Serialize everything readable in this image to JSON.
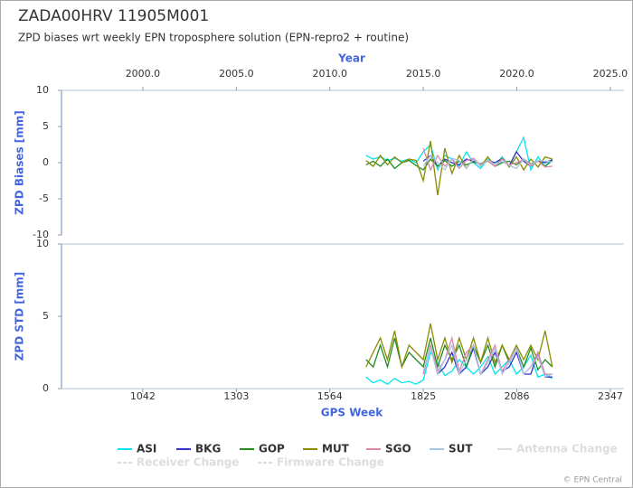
{
  "header": {
    "title": "ZADA00HRV 11905M001",
    "subtitle": "ZPD biases wrt weekly EPN troposphere solution (EPN-repro2 + routine)"
  },
  "chart_data": [
    {
      "type": "line",
      "ylabel": "ZPD Biases [mm]",
      "x2label": "Year",
      "x": [
        1665,
        1685,
        1705,
        1725,
        1745,
        1765,
        1785,
        1805,
        1825,
        1845,
        1865,
        1885,
        1905,
        1925,
        1945,
        1965,
        1985,
        2005,
        2025,
        2045,
        2065,
        2085,
        2105,
        2125,
        2145,
        2165,
        2185
      ],
      "xlim": [
        815,
        2385
      ],
      "x2lim": [
        1995.65,
        2025.73
      ],
      "x2ticks": [
        {
          "value": 2000,
          "label": "2000.0"
        },
        {
          "value": 2005,
          "label": "2005.0"
        },
        {
          "value": 2010,
          "label": "2010.0"
        },
        {
          "value": 2015,
          "label": "2015.0"
        },
        {
          "value": 2020,
          "label": "2020.0"
        },
        {
          "value": 2025,
          "label": "2025.0"
        }
      ],
      "ylim": [
        -10,
        10
      ],
      "yticks": [
        -10,
        -5,
        0,
        5,
        10
      ],
      "series": [
        {
          "name": "ASI",
          "color": "#00e5ee",
          "values": [
            1.0,
            0.5,
            0.8,
            0.3,
            0.6,
            0.2,
            0.5,
            0.0,
            1.5,
            2.5,
            -1.0,
            1.0,
            0.5,
            -0.5,
            1.5,
            0.0,
            -0.8,
            0.5,
            -0.5,
            0.8,
            -0.5,
            1.5,
            3.5,
            -1.0,
            0.8,
            -0.5,
            0.5
          ]
        },
        {
          "name": "BKG",
          "color": "#3333cc",
          "values": [
            null,
            null,
            null,
            null,
            null,
            null,
            null,
            null,
            0.2,
            1.0,
            -0.5,
            0.5,
            0.0,
            -0.3,
            0.5,
            0.2,
            -0.2,
            0.3,
            0.0,
            0.6,
            -0.4,
            1.5,
            0.2,
            -0.5,
            0.3,
            0.0,
            0.4
          ]
        },
        {
          "name": "GOP",
          "color": "#228b22",
          "values": [
            -0.3,
            0.2,
            -0.5,
            0.5,
            -0.8,
            0.0,
            0.3,
            -0.4,
            -1.0,
            0.5,
            -0.5,
            0.3,
            -0.5,
            0.2,
            -0.3,
            0.1,
            -0.2,
            0.3,
            -0.5,
            0.0,
            0.2,
            -0.3,
            0.5,
            -0.2,
            0.3,
            -0.5,
            0.3
          ]
        },
        {
          "name": "MUT",
          "color": "#8b8b00",
          "values": [
            0.3,
            -0.5,
            1.0,
            -0.3,
            0.8,
            0.0,
            0.5,
            0.3,
            -2.5,
            3.0,
            -4.5,
            2.0,
            -1.5,
            1.0,
            -0.8,
            0.6,
            -0.5,
            0.8,
            -0.5,
            0.6,
            -0.6,
            0.8,
            -1.0,
            0.5,
            -0.6,
            0.8,
            0.5
          ]
        },
        {
          "name": "SGO",
          "color": "#dd88aa",
          "values": [
            null,
            null,
            null,
            null,
            null,
            null,
            null,
            null,
            2.0,
            -1.0,
            1.0,
            -0.5,
            0.5,
            -0.8,
            0.3,
            0.6,
            -0.3,
            0.2,
            -0.5,
            0.5,
            -0.3,
            0.0,
            0.4,
            -0.5,
            0.2,
            -0.6,
            -0.5
          ]
        },
        {
          "name": "SUT",
          "color": "#aac4e0",
          "values": [
            null,
            null,
            null,
            null,
            null,
            null,
            null,
            null,
            -0.5,
            1.0,
            0.0,
            -1.0,
            0.6,
            0.3,
            -0.8,
            0.5,
            -0.5,
            0.4,
            -0.3,
            0.2,
            -0.4,
            -0.8,
            0.5,
            -0.3,
            0.3,
            0.2,
            0.1
          ]
        }
      ]
    },
    {
      "type": "line",
      "ylabel": "ZPD STD [mm]",
      "xlabel": "GPS Week",
      "x": [
        1665,
        1685,
        1705,
        1725,
        1745,
        1765,
        1785,
        1805,
        1825,
        1845,
        1865,
        1885,
        1905,
        1925,
        1945,
        1965,
        1985,
        2005,
        2025,
        2045,
        2065,
        2085,
        2105,
        2125,
        2145,
        2165,
        2185
      ],
      "xlim": [
        815,
        2385
      ],
      "xticks": [
        1042,
        1303,
        1564,
        1825,
        2086,
        2347
      ],
      "ylim": [
        0,
        10
      ],
      "yticks": [
        0,
        5,
        10
      ],
      "series": [
        {
          "color": "#00e5ee",
          "values": [
            0.8,
            0.4,
            0.6,
            0.3,
            0.7,
            0.4,
            0.5,
            0.3,
            0.6,
            2.5,
            1.8,
            0.9,
            1.2,
            2.0,
            1.5,
            1.0,
            1.5,
            2.2,
            1.0,
            1.5,
            2.0,
            1.0,
            1.5,
            2.3,
            0.8,
            1.0,
            0.7
          ]
        },
        {
          "color": "#3333cc",
          "values": [
            null,
            null,
            null,
            null,
            null,
            null,
            null,
            null,
            1.0,
            3.0,
            1.0,
            1.5,
            2.5,
            1.0,
            1.5,
            2.8,
            1.0,
            1.5,
            2.5,
            1.2,
            1.5,
            2.5,
            1.0,
            1.0,
            2.5,
            0.8,
            0.8
          ]
        },
        {
          "color": "#228b22",
          "values": [
            2.0,
            1.5,
            3.0,
            1.5,
            3.5,
            1.5,
            2.5,
            2.0,
            1.5,
            3.5,
            1.5,
            3.0,
            2.0,
            3.0,
            1.5,
            3.0,
            1.8,
            3.0,
            1.5,
            3.0,
            1.8,
            2.8,
            1.5,
            2.8,
            1.3,
            2.0,
            1.5
          ]
        },
        {
          "color": "#8b8b00",
          "values": [
            1.5,
            2.5,
            3.5,
            2.0,
            4.0,
            1.5,
            3.0,
            2.5,
            2.0,
            4.5,
            2.0,
            3.5,
            1.8,
            3.5,
            2.0,
            3.5,
            1.8,
            3.5,
            1.8,
            3.0,
            2.0,
            3.0,
            2.0,
            3.0,
            2.0,
            4.0,
            1.5
          ]
        },
        {
          "color": "#dd88aa",
          "values": [
            null,
            null,
            null,
            null,
            null,
            null,
            null,
            null,
            1.0,
            3.0,
            1.2,
            2.0,
            3.5,
            1.2,
            2.5,
            3.0,
            1.0,
            2.0,
            3.0,
            1.2,
            2.0,
            2.8,
            1.0,
            1.5,
            2.5,
            1.0,
            1.0
          ]
        },
        {
          "color": "#aac4e0",
          "values": [
            null,
            null,
            null,
            null,
            null,
            null,
            null,
            null,
            1.2,
            2.8,
            1.0,
            2.0,
            3.0,
            1.0,
            2.0,
            3.0,
            1.0,
            1.8,
            2.8,
            1.0,
            1.8,
            2.8,
            1.0,
            1.5,
            2.2,
            0.8,
            1.0
          ]
        }
      ]
    }
  ],
  "extra_legend": [
    {
      "name": "Antenna Change",
      "color": "#dddddd"
    },
    {
      "name": "Receiver Change",
      "color": "#dddddd"
    },
    {
      "name": "Firmware Change",
      "color": "#dddddd"
    }
  ],
  "credit": "© EPN Central"
}
